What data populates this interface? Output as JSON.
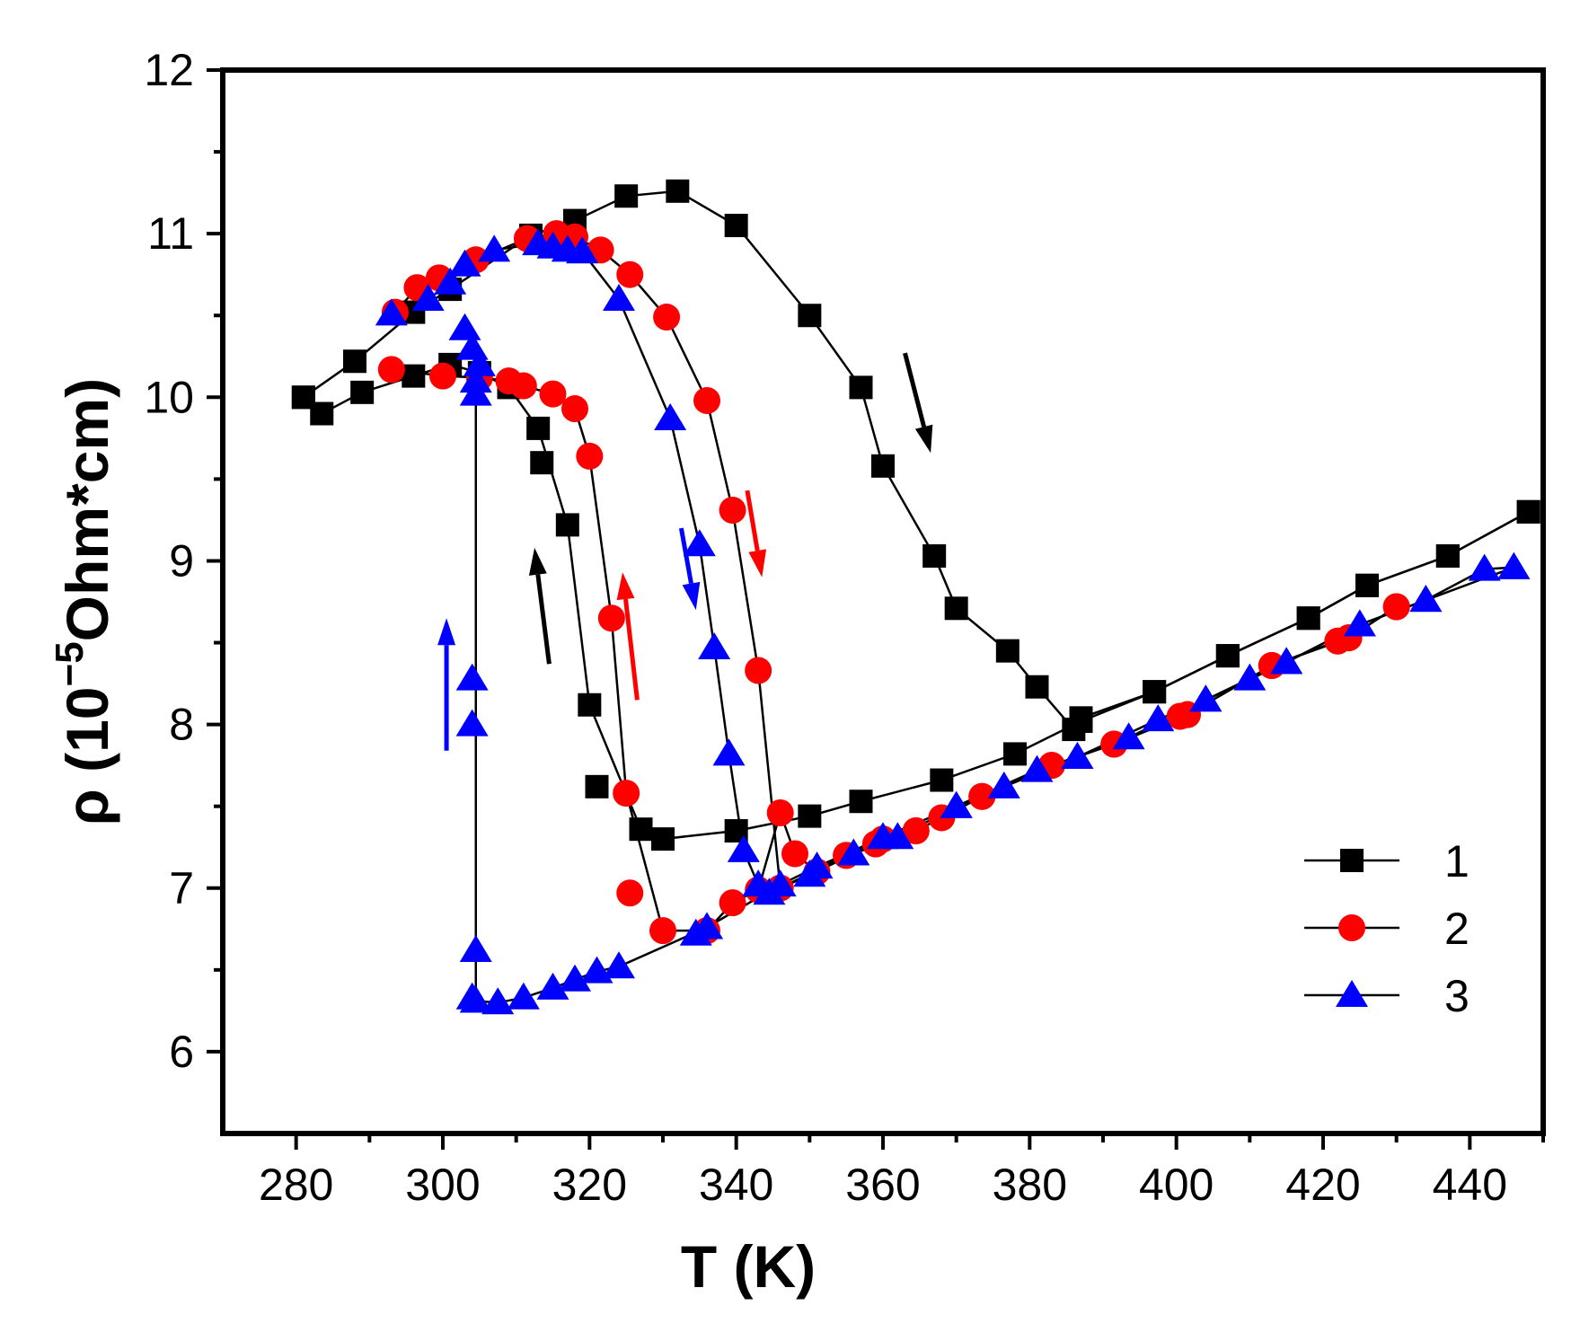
{
  "chart_data": {
    "type": "scatter",
    "title": "",
    "xlabel": "T (K)",
    "ylabel": {
      "main": "ρ (10",
      "sup": "−5",
      "rest": "Ohm*cm)"
    },
    "xlim": [
      270,
      450
    ],
    "ylim": [
      5.5,
      12
    ],
    "xticks": [
      280,
      300,
      320,
      340,
      360,
      380,
      400,
      420,
      440
    ],
    "yticks": [
      6,
      7,
      8,
      9,
      10,
      11,
      12
    ],
    "legend_position": "bottom-right",
    "colors": {
      "axis": "#000000",
      "s1": "#000000",
      "s2": "#ff0000",
      "s3": "#0000ff"
    },
    "series": [
      {
        "name": "1",
        "marker": "square",
        "heating": {
          "x": [
            281,
            283.5,
            289,
            296,
            301,
            305,
            309,
            313,
            317,
            320,
            327,
            330,
            340,
            350,
            357,
            368,
            378,
            387,
            397,
            407,
            418,
            426,
            437,
            448
          ],
          "y": [
            10.0,
            9.9,
            10.03,
            10.13,
            10.2,
            10.15,
            10.06,
            9.81,
            9.22,
            8.12,
            7.36,
            7.3,
            7.35,
            7.44,
            7.53,
            7.66,
            7.82,
            8.02,
            8.2,
            8.42,
            8.65,
            8.85,
            9.03,
            9.3
          ]
        },
        "cooling": {
          "x": [
            448,
            437,
            426,
            418,
            407,
            397,
            387,
            386,
            381,
            377,
            370,
            367,
            360,
            357,
            350,
            340,
            332,
            325,
            318,
            312,
            301,
            296,
            288,
            281
          ],
          "y": [
            9.3,
            9.03,
            8.85,
            8.65,
            8.42,
            8.2,
            8.04,
            7.97,
            8.23,
            8.45,
            8.71,
            9.03,
            9.58,
            10.06,
            10.5,
            11.05,
            11.26,
            11.23,
            11.08,
            10.99,
            10.66,
            10.52,
            10.22,
            10.0
          ]
        },
        "extra_points": {
          "x": [
            313.5,
            321
          ],
          "y": [
            9.6,
            7.62
          ]
        },
        "arrows": [
          {
            "x1": 363,
            "y1": 10.27,
            "x2": 366.5,
            "y2": 9.66
          },
          {
            "x1": 314.5,
            "y1": 8.37,
            "x2": 312.5,
            "y2": 9.08
          }
        ]
      },
      {
        "name": "2",
        "marker": "circle",
        "heating": {
          "x": [
            293,
            300,
            305,
            309,
            311,
            315,
            318,
            320,
            323,
            325,
            330,
            336,
            339.5,
            343,
            346,
            348,
            351,
            355,
            359,
            360,
            364.5,
            368,
            373.5,
            383,
            391.5,
            400.5,
            401.5,
            413,
            422,
            423.5,
            430
          ],
          "y": [
            10.17,
            10.13,
            10.12,
            10.1,
            10.07,
            10.02,
            9.93,
            9.64,
            8.65,
            7.58,
            6.74,
            6.74,
            6.91,
            6.99,
            7.46,
            7.21,
            7.1,
            7.2,
            7.27,
            7.3,
            7.35,
            7.43,
            7.56,
            7.75,
            7.88,
            8.05,
            8.06,
            8.36,
            8.51,
            8.53,
            8.72
          ]
        },
        "cooling": {
          "x": [
            430,
            423.5,
            413,
            401.5,
            391.5,
            383,
            373.5,
            364.5,
            355,
            346,
            343,
            339.5,
            336,
            330.5,
            325.5,
            321.5,
            318,
            315.5,
            311.5,
            304.5,
            299.5,
            296.5,
            293.5
          ],
          "y": [
            8.72,
            8.53,
            8.36,
            8.06,
            7.88,
            7.75,
            7.56,
            7.35,
            7.2,
            7.0,
            8.33,
            9.31,
            9.98,
            10.49,
            10.75,
            10.9,
            10.98,
            11.0,
            10.97,
            10.84,
            10.73,
            10.67,
            10.52
          ]
        },
        "extra_points": {
          "x": [
            325.5
          ],
          "y": [
            6.97
          ]
        },
        "arrows": [
          {
            "x1": 326.5,
            "y1": 8.15,
            "x2": 324.5,
            "y2": 8.93
          },
          {
            "x1": 341.5,
            "y1": 9.43,
            "x2": 343.5,
            "y2": 8.9
          }
        ]
      },
      {
        "name": "3",
        "marker": "triangle",
        "heating": {
          "x": [
            304,
            304.5,
            307.5,
            311,
            315,
            318,
            321,
            324,
            336,
            346,
            351,
            360,
            370,
            381,
            386.5,
            397.5,
            404,
            410,
            415,
            425,
            434,
            442,
            446
          ],
          "y": [
            6.33,
            6.31,
            6.3,
            6.33,
            6.39,
            6.44,
            6.49,
            6.52,
            6.76,
            7.02,
            7.13,
            7.31,
            7.5,
            7.72,
            7.8,
            8.03,
            8.15,
            8.28,
            8.38,
            8.61,
            8.76,
            8.95,
            8.96
          ]
        },
        "cooling": {
          "x": [
            446,
            434,
            425,
            415,
            404,
            393.5,
            386.5,
            376.5,
            370,
            362,
            356,
            350,
            344.5,
            343,
            341,
            339,
            337,
            335,
            331,
            324,
            319,
            317,
            315,
            313,
            307,
            303,
            301,
            298,
            293
          ],
          "y": [
            8.96,
            8.76,
            8.61,
            8.38,
            8.15,
            7.92,
            7.8,
            7.62,
            7.5,
            7.31,
            7.21,
            7.08,
            6.97,
            7.02,
            7.23,
            7.82,
            8.47,
            9.1,
            9.87,
            10.6,
            10.89,
            10.9,
            10.92,
            10.94,
            10.9,
            10.81,
            10.7,
            10.6,
            10.51
          ]
        },
        "extra_points": {
          "x": [
            304.5,
            304,
            304,
            304.5,
            304.5,
            305,
            304,
            303,
            336,
            334.5
          ],
          "y": [
            6.62,
            8.0,
            8.28,
            10.02,
            10.1,
            10.2,
            10.3,
            10.42,
            6.76,
            6.72
          ]
        },
        "jump_line": {
          "x": 304.5,
          "y1": 6.33,
          "y2": 10.05
        },
        "arrows": [
          {
            "x1": 300.5,
            "y1": 7.84,
            "x2": 300.5,
            "y2": 8.65
          },
          {
            "x1": 332.5,
            "y1": 9.2,
            "x2": 334.5,
            "y2": 8.7
          }
        ]
      }
    ]
  }
}
